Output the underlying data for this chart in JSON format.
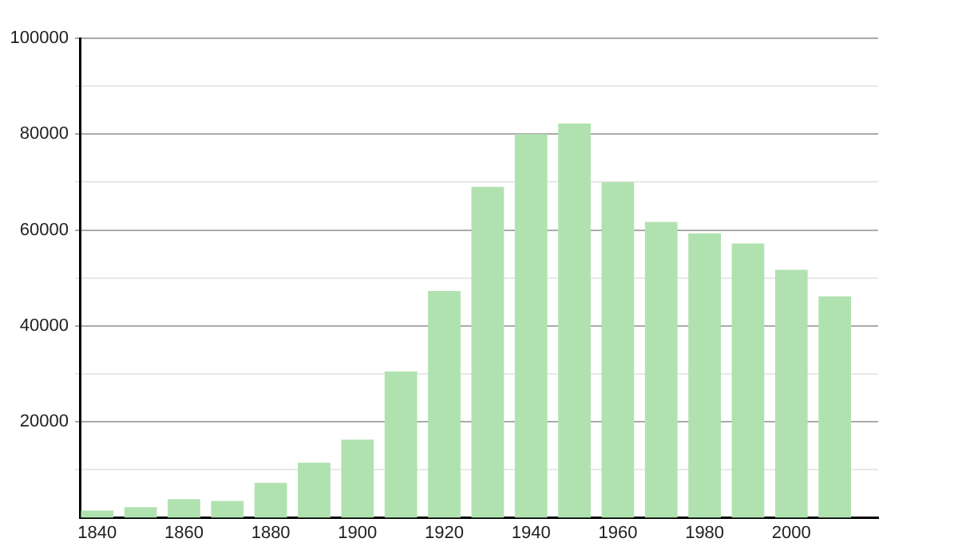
{
  "chart_data": {
    "type": "bar",
    "x": [
      1840,
      1850,
      1860,
      1870,
      1880,
      1890,
      1900,
      1910,
      1920,
      1930,
      1940,
      1950,
      1960,
      1970,
      1980,
      1990,
      2000,
      2010
    ],
    "values": [
      1500,
      2200,
      3900,
      3500,
      7300,
      11500,
      16300,
      30500,
      47300,
      69000,
      80000,
      82200,
      70000,
      61700,
      59300,
      57200,
      51700,
      46200
    ],
    "color": "#b0e2b0",
    "xlim": [
      1836,
      2020
    ],
    "xticks": [
      1840,
      1860,
      1880,
      1900,
      1920,
      1940,
      1960,
      1980,
      2000
    ],
    "ylim": [
      0,
      100000
    ],
    "yticks": [
      {
        "value": 10000,
        "label": null
      },
      20000,
      {
        "value": 30000,
        "label": null
      },
      40000,
      {
        "value": 50000,
        "label": null
      },
      60000,
      {
        "value": 70000,
        "label": null
      },
      80000,
      {
        "value": 90000,
        "label": null
      },
      100000
    ],
    "grid": "y"
  }
}
